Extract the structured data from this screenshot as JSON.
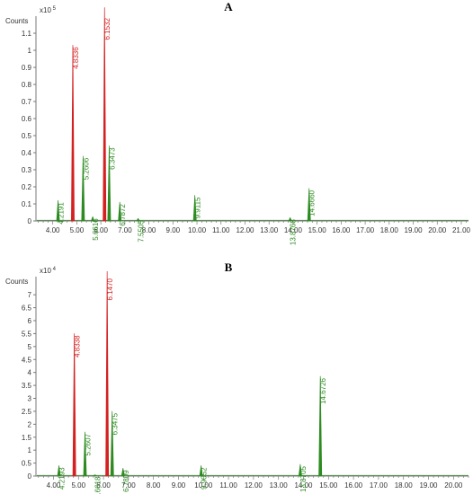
{
  "chart_data": [
    {
      "panel": "A",
      "type": "line",
      "ylabel": "Counts",
      "y_multiplier": "x10 5",
      "xlim": [
        3.3,
        21.3
      ],
      "ylim": [
        0,
        1.2
      ],
      "x_ticks": [
        "4.00",
        "5.00",
        "6.00",
        "7.00",
        "8.00",
        "9.00",
        "10.00",
        "11.00",
        "12.00",
        "13.00",
        "14.00",
        "15.00",
        "16.00",
        "17.00",
        "18.00",
        "19.00",
        "20.00",
        "21.00"
      ],
      "y_ticks": [
        "0",
        "0.1",
        "0.2",
        "0.3",
        "0.4",
        "0.5",
        "0.6",
        "0.7",
        "0.8",
        "0.9",
        "1",
        "1.1"
      ],
      "peaks": [
        {
          "rt": 4.2191,
          "label": "4.2191",
          "height": 0.12,
          "color": "#2e8b22"
        },
        {
          "rt": 4.8336,
          "label": "4.8336",
          "height": 1.03,
          "color": "#d42020"
        },
        {
          "rt": 5.2606,
          "label": "5.2606",
          "height": 0.38,
          "color": "#2e8b22"
        },
        {
          "rt": 5.6616,
          "label": "5.6616",
          "height": 0.025,
          "color": "#2e8b22"
        },
        {
          "rt": 6.1532,
          "label": "6.1532",
          "height": 1.25,
          "color": "#d42020"
        },
        {
          "rt": 6.3473,
          "label": "6.3473",
          "height": 0.44,
          "color": "#2e8b22"
        },
        {
          "rt": 6.7872,
          "label": "6.7872",
          "height": 0.11,
          "color": "#2e8b22"
        },
        {
          "rt": 7.5505,
          "label": "7.5505",
          "height": 0.015,
          "color": "#2e8b22"
        },
        {
          "rt": 9.9115,
          "label": "9.9115",
          "height": 0.15,
          "color": "#2e8b22"
        },
        {
          "rt": 13.8768,
          "label": "13.8768",
          "height": 0.02,
          "color": "#2e8b22"
        },
        {
          "rt": 14.666,
          "label": "14.6660",
          "height": 0.19,
          "color": "#2e8b22"
        }
      ]
    },
    {
      "panel": "B",
      "type": "line",
      "ylabel": "Counts",
      "y_multiplier": "x10 4",
      "xlim": [
        3.3,
        20.6
      ],
      "ylim": [
        0,
        7.7
      ],
      "x_ticks": [
        "4.00",
        "5.00",
        "6.00",
        "7.00",
        "8.00",
        "9.00",
        "10.00",
        "11.00",
        "12.00",
        "13.00",
        "14.00",
        "15.00",
        "16.00",
        "17.00",
        "18.00",
        "19.00",
        "20.00"
      ],
      "y_ticks": [
        "0",
        "0.5",
        "1",
        "1.5",
        "2",
        "2.5",
        "3",
        "3.5",
        "4",
        "4.5",
        "5",
        "5.5",
        "6",
        "6.5",
        "7"
      ],
      "peaks": [
        {
          "rt": 4.2193,
          "label": "4.2193",
          "height": 0.4,
          "color": "#2e8b22"
        },
        {
          "rt": 4.8338,
          "label": "4.8338",
          "height": 5.5,
          "color": "#d42020"
        },
        {
          "rt": 5.2607,
          "label": "5.2607",
          "height": 1.7,
          "color": "#2e8b22"
        },
        {
          "rt": 5.6618,
          "label": "5.6618",
          "height": 0.05,
          "color": "#2e8b22"
        },
        {
          "rt": 6.147,
          "label": "6.1470",
          "height": 7.9,
          "color": "#d42020"
        },
        {
          "rt": 6.3475,
          "label": "6.3475",
          "height": 2.5,
          "color": "#2e8b22"
        },
        {
          "rt": 6.7809,
          "label": "6.7809",
          "height": 0.3,
          "color": "#2e8b22"
        },
        {
          "rt": 9.9052,
          "label": "9.9052",
          "height": 0.4,
          "color": "#2e8b22"
        },
        {
          "rt": 13.8705,
          "label": "13.8705",
          "height": 0.45,
          "color": "#2e8b22"
        },
        {
          "rt": 14.6726,
          "label": "14.6726",
          "height": 3.85,
          "color": "#2e8b22"
        }
      ]
    }
  ]
}
